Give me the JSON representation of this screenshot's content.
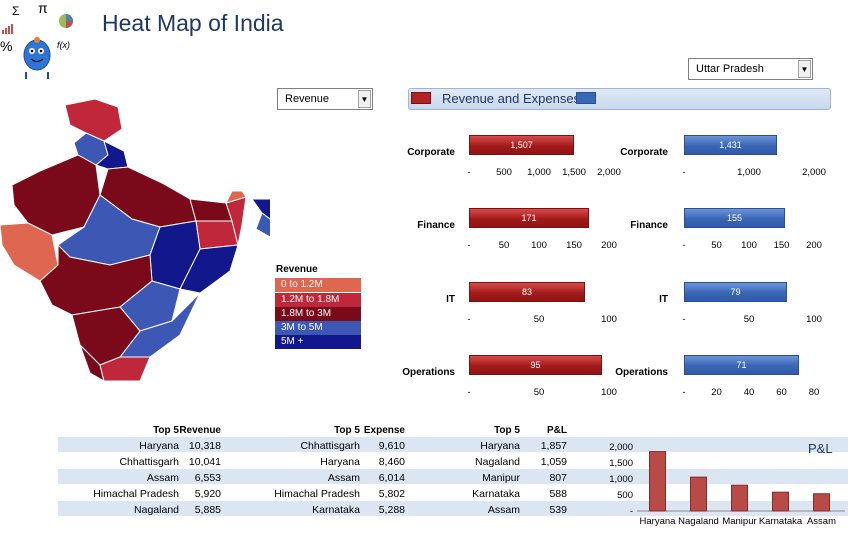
{
  "title": "Heat Map of India",
  "logo": {
    "glyphs": [
      "Σ",
      "π",
      "%",
      "f(x)"
    ]
  },
  "metric_select": {
    "value": "Revenue"
  },
  "state_select": {
    "value": "Uttar Pradesh"
  },
  "banner": {
    "label": "Revenue and Expenses"
  },
  "legend": {
    "title": "Revenue",
    "items": [
      {
        "label": "0 to 1.2M",
        "color": "#e0674f"
      },
      {
        "label": "1.2M to 1.8M",
        "color": "#c0273a"
      },
      {
        "label": "1.8M to 3M",
        "color": "#7a0a1a"
      },
      {
        "label": "3M to 5M",
        "color": "#3d57b5"
      },
      {
        "label": "5M +",
        "color": "#12178c"
      }
    ]
  },
  "rev_chart": {
    "categories": [
      "Corporate",
      "Finance",
      "IT",
      "Operations"
    ],
    "values": [
      "1,507",
      "171",
      "83",
      "95"
    ],
    "ticks": [
      [
        "-",
        "500",
        "1,000",
        "1,500",
        "2,000"
      ],
      [
        "-",
        "50",
        "100",
        "150",
        "200"
      ],
      [
        "-",
        "50",
        "100"
      ],
      [
        "-",
        "50",
        "100"
      ]
    ]
  },
  "exp_chart": {
    "categories": [
      "Corporate",
      "Finance",
      "IT",
      "Operations"
    ],
    "values": [
      "1,431",
      "155",
      "79",
      "71"
    ],
    "ticks": [
      [
        "-",
        "1,000",
        "2,000"
      ],
      [
        "-",
        "50",
        "100",
        "150",
        "200"
      ],
      [
        "-",
        "50",
        "100"
      ],
      [
        "-",
        "20",
        "40",
        "60",
        "80"
      ]
    ]
  },
  "chart_data": [
    {
      "type": "bar",
      "title": "Revenue and Expenses",
      "series": [
        {
          "name": "Revenue",
          "values": [
            1507,
            171,
            83,
            95
          ]
        }
      ],
      "categories": [
        "Corporate",
        "Finance",
        "IT",
        "Operations"
      ]
    },
    {
      "type": "bar",
      "series": [
        {
          "name": "Expenses",
          "values": [
            1431,
            155,
            79,
            71
          ]
        }
      ],
      "categories": [
        "Corporate",
        "Finance",
        "IT",
        "Operations"
      ]
    },
    {
      "type": "bar",
      "title": "P&L",
      "categories": [
        "Haryana",
        "Nagaland",
        "Manipur",
        "Karnataka",
        "Assam"
      ],
      "values": [
        1857,
        1059,
        807,
        588,
        539
      ],
      "ylim": [
        0,
        2000
      ],
      "yticks": [
        "-",
        "500",
        "1,000",
        "1,500",
        "2,000"
      ]
    }
  ],
  "top5_revenue": {
    "headers": [
      "Top 5",
      "Revenue"
    ],
    "rows": [
      [
        "Haryana",
        "10,318"
      ],
      [
        "Chhattisgarh",
        "10,041"
      ],
      [
        "Assam",
        "6,553"
      ],
      [
        "Himachal Pradesh",
        "5,920"
      ],
      [
        "Nagaland",
        "5,885"
      ]
    ]
  },
  "top5_expense": {
    "headers": [
      "Top 5",
      "Expense"
    ],
    "rows": [
      [
        "Chhattisgarh",
        "9,610"
      ],
      [
        "Haryana",
        "8,460"
      ],
      [
        "Assam",
        "6,014"
      ],
      [
        "Himachal Pradesh",
        "5,802"
      ],
      [
        "Karnataka",
        "5,288"
      ]
    ]
  },
  "top5_pl": {
    "headers": [
      "Top 5",
      "P&L"
    ],
    "rows": [
      [
        "Haryana",
        "1,857"
      ],
      [
        "Nagaland",
        "1,059"
      ],
      [
        "Manipur",
        "807"
      ],
      [
        "Karnataka",
        "588"
      ],
      [
        "Assam",
        "539"
      ]
    ]
  },
  "pl_chart": {
    "title": "P&L",
    "yticks": [
      "2,000",
      "1,500",
      "1,000",
      "500",
      "-"
    ],
    "categories": [
      "Haryana",
      "Nagaland",
      "Manipur",
      "Karnataka",
      "Assam"
    ]
  }
}
